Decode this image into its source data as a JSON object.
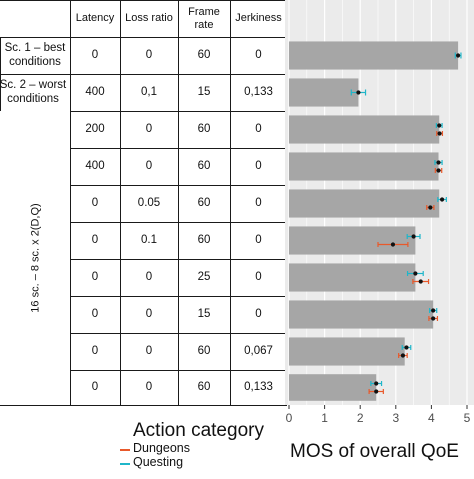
{
  "table": {
    "headers": [
      "Latency",
      "Loss ratio",
      "Frame rate",
      "Jerkiness"
    ],
    "scenario_labels": [
      "Sc. 1 – best conditions",
      "Sc. 2 – worst conditions"
    ],
    "group_label": "16 sc. – 8 sc. x 2(D,Q)",
    "rows": [
      [
        "0",
        "0",
        "60",
        "0"
      ],
      [
        "400",
        "0,1",
        "15",
        "0,133"
      ],
      [
        "200",
        "0",
        "60",
        "0"
      ],
      [
        "400",
        "0",
        "60",
        "0"
      ],
      [
        "0",
        "0.05",
        "60",
        "0"
      ],
      [
        "0",
        "0.1",
        "60",
        "0"
      ],
      [
        "0",
        "0",
        "25",
        "0"
      ],
      [
        "0",
        "0",
        "15",
        "0"
      ],
      [
        "0",
        "0",
        "60",
        "0,067"
      ],
      [
        "0",
        "0",
        "60",
        "0,133"
      ]
    ]
  },
  "chart_data": {
    "type": "bar",
    "orientation": "horizontal",
    "xlabel": "MOS of overall QoE",
    "xlim": [
      0,
      5
    ],
    "xticks": [
      "0",
      "1",
      "2",
      "3",
      "4",
      "5"
    ],
    "grid": true,
    "legend_title": "Action category",
    "series": [
      {
        "name": "Dungeons",
        "color": "#e8592b"
      },
      {
        "name": "Questing",
        "color": "#1fb6c9"
      }
    ],
    "categories": [
      "Sc. 1",
      "Sc. 2",
      "Latency 200",
      "Latency 400",
      "Loss 0.05",
      "Loss 0.1",
      "Frame rate 25",
      "Frame rate 15",
      "Jerkiness 0,067",
      "Jerkiness 0,133"
    ],
    "bars": [
      {
        "value": 4.75
      },
      {
        "value": 1.95
      },
      {
        "value": 4.22,
        "D": 4.23,
        "Q": 4.22,
        "D_err": 0.08,
        "Q_err": 0.08
      },
      {
        "value": 4.2,
        "D": 4.2,
        "Q": 4.2,
        "D_err": 0.09,
        "Q_err": 0.1
      },
      {
        "value": 4.22,
        "D": 3.97,
        "Q": 4.3,
        "D_err": 0.1,
        "Q_err": 0.12
      },
      {
        "value": 3.55,
        "D": 2.92,
        "Q": 3.5,
        "D_err": 0.42,
        "Q_err": 0.18
      },
      {
        "value": 3.55,
        "D": 3.7,
        "Q": 3.55,
        "D_err": 0.22,
        "Q_err": 0.22
      },
      {
        "value": 4.05,
        "D": 4.05,
        "Q": 4.05,
        "D_err": 0.12,
        "Q_err": 0.1
      },
      {
        "value": 3.25,
        "D": 3.2,
        "Q": 3.3,
        "D_err": 0.12,
        "Q_err": 0.12
      },
      {
        "value": 2.45,
        "D": 2.45,
        "Q": 2.45,
        "D_err": 0.2,
        "Q_err": 0.15
      }
    ],
    "overall_points": [
      {
        "value": 4.75,
        "err": 0.08
      },
      {
        "value": 1.95,
        "err": 0.2
      }
    ]
  }
}
